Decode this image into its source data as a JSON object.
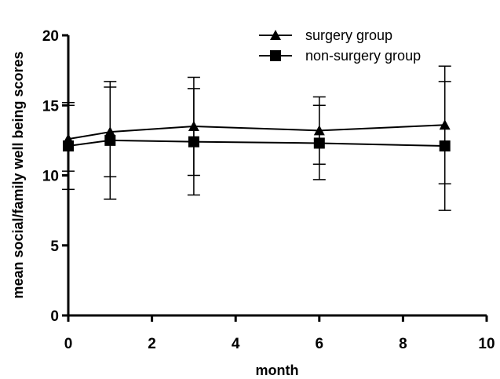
{
  "chart_data": {
    "type": "line",
    "title": "",
    "xlabel": "month",
    "ylabel": "mean social/family well being scores",
    "xlim": [
      0,
      10
    ],
    "ylim": [
      0,
      20
    ],
    "xticks": [
      "0",
      "2",
      "4",
      "6",
      "8",
      "10"
    ],
    "yticks": [
      "0",
      "5",
      "10",
      "15",
      "20"
    ],
    "grid": false,
    "legend_position": "top-right",
    "x": [
      0,
      1,
      3,
      6,
      9
    ],
    "series": [
      {
        "name": "surgery group",
        "marker": "triangle",
        "values": [
          12.6,
          13.1,
          13.5,
          13.2,
          13.6
        ],
        "err_low": [
          10.3,
          9.9,
          10.0,
          10.8,
          9.4
        ],
        "err_high": [
          15.0,
          16.3,
          16.2,
          15.0,
          17.8
        ],
        "color": "#000000"
      },
      {
        "name": "non-surgery group",
        "marker": "square",
        "values": [
          12.1,
          12.5,
          12.4,
          12.3,
          12.1
        ],
        "err_low": [
          9.0,
          8.3,
          8.6,
          9.7,
          7.5
        ],
        "err_high": [
          15.2,
          16.7,
          17.0,
          15.6,
          16.7
        ],
        "color": "#000000"
      }
    ]
  }
}
